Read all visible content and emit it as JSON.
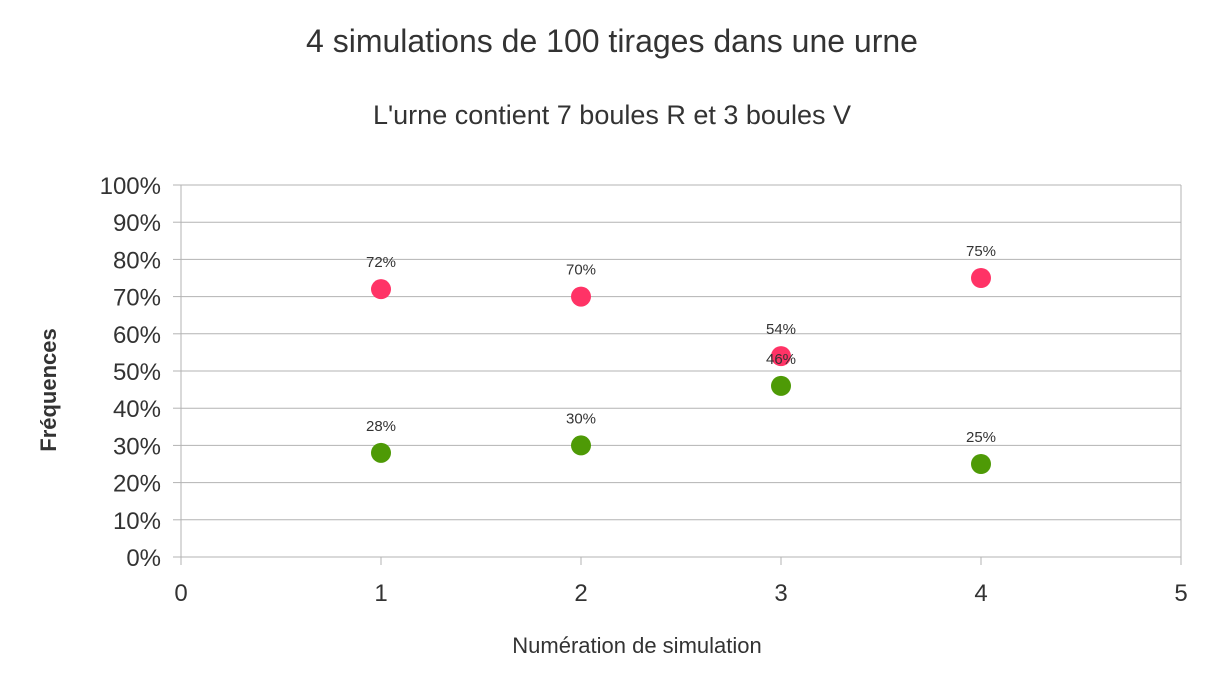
{
  "chart_data": {
    "type": "scatter",
    "title": "4 simulations de 100 tirages dans une urne",
    "subtitle": "L'urne contient 7 boules R et 3 boules V",
    "xlabel": "Numération de simulation",
    "ylabel": "Fréquences",
    "xlim": [
      0,
      5
    ],
    "ylim": [
      0,
      1
    ],
    "x_ticks": [
      "0",
      "1",
      "2",
      "3",
      "4",
      "5"
    ],
    "y_ticks": [
      "0%",
      "10%",
      "20%",
      "30%",
      "40%",
      "50%",
      "60%",
      "70%",
      "80%",
      "90%",
      "100%"
    ],
    "grid": true,
    "legend": "none",
    "series": [
      {
        "color": "#ff3366",
        "x": [
          1,
          2,
          3,
          4
        ],
        "y": [
          0.72,
          0.7,
          0.54,
          0.75
        ],
        "labels": [
          "72%",
          "70%",
          "54%",
          "75%"
        ]
      },
      {
        "color": "#4e9a06",
        "x": [
          1,
          2,
          3,
          4
        ],
        "y": [
          0.28,
          0.3,
          0.46,
          0.25
        ],
        "labels": [
          "28%",
          "30%",
          "46%",
          "25%"
        ]
      }
    ],
    "colors": {
      "grid": "#b3b3b3",
      "axis": "#b3b3b3",
      "text": "#333333"
    }
  }
}
